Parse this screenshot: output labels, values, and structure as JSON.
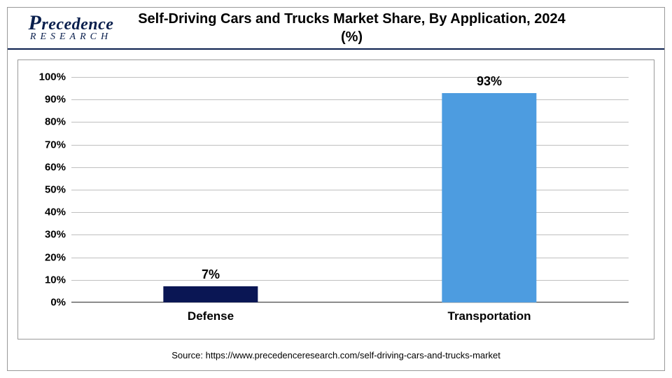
{
  "logo": {
    "main": "Precedence",
    "sub": "RESEARCH"
  },
  "chart": {
    "type": "bar",
    "title": "Self-Driving Cars and Trucks Market Share, By Application, 2024 (%)",
    "categories": [
      "Defense",
      "Transportation"
    ],
    "values": [
      7,
      93
    ],
    "value_labels": [
      "7%",
      "93%"
    ],
    "bar_colors": [
      "#0a1654",
      "#4d9ce0"
    ],
    "bar_width_pct": 17,
    "ylim": [
      0,
      100
    ],
    "ytick_step": 10,
    "ytick_labels": [
      "0%",
      "10%",
      "20%",
      "30%",
      "40%",
      "50%",
      "60%",
      "70%",
      "80%",
      "90%",
      "100%"
    ],
    "grid_color": "#bfbfbf",
    "axis_color": "#595959",
    "background_color": "#ffffff",
    "title_fontsize": 20,
    "tick_fontsize": 15,
    "category_fontsize": 17,
    "value_label_fontsize": 18,
    "frame_border_color": "#999999",
    "header_rule_color": "#0a1f4d"
  },
  "source": "Source: https://www.precedenceresearch.com/self-driving-cars-and-trucks-market"
}
